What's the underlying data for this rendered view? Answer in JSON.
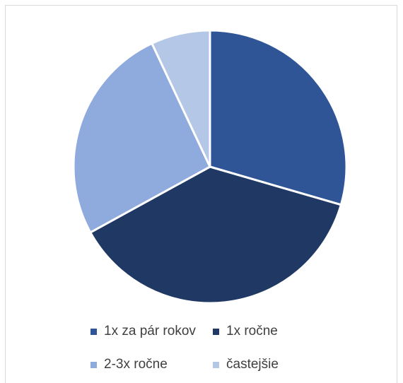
{
  "chart_data": {
    "type": "pie",
    "categories": [
      "1x za pár rokov",
      "1x ročne",
      "2-3x ročne",
      "častejšie"
    ],
    "values": [
      29.5,
      37.5,
      26,
      7
    ],
    "colors": [
      "#2f5597",
      "#203864",
      "#8faadc",
      "#b4c7e7"
    ],
    "title": "",
    "legend": "bottom",
    "slice_border_color": "#ffffff"
  }
}
